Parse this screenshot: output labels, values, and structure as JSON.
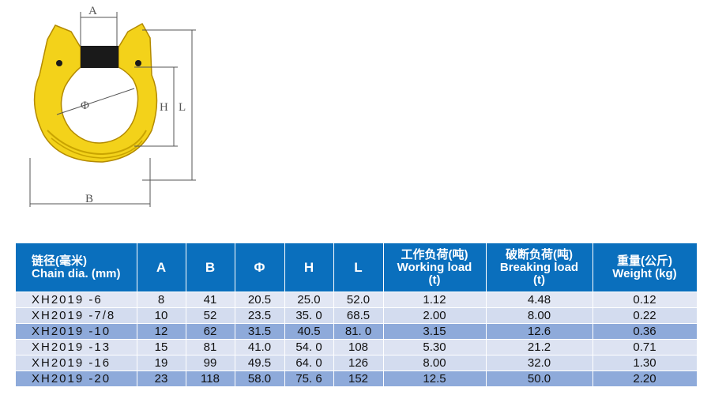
{
  "drawing": {
    "labels": {
      "a": "A",
      "b": "B",
      "phi": "Φ",
      "h": "H",
      "l": "L"
    },
    "colors": {
      "body": "#f3d21a",
      "pin": "#1a1a1a"
    }
  },
  "table": {
    "headers": [
      {
        "cn": "链径(毫米)",
        "en": "Chain dia. (mm)",
        "unit": ""
      },
      {
        "cn": "",
        "en": "A",
        "unit": ""
      },
      {
        "cn": "",
        "en": "B",
        "unit": ""
      },
      {
        "cn": "",
        "en": "Φ",
        "unit": ""
      },
      {
        "cn": "",
        "en": "H",
        "unit": ""
      },
      {
        "cn": "",
        "en": "L",
        "unit": ""
      },
      {
        "cn": "工作负荷(吨)",
        "en": "Working load",
        "unit": "(t)"
      },
      {
        "cn": "破断负荷(吨)",
        "en": "Breaking load",
        "unit": "(t)"
      },
      {
        "cn": "重量(公斤)",
        "en": "Weight (kg)",
        "unit": ""
      }
    ],
    "rows": [
      [
        "XH2019 -6",
        "8",
        "41",
        "20.5",
        "25.0",
        "52.0",
        "1.12",
        "4.48",
        "0.12"
      ],
      [
        "XH2019 -7/8",
        "10",
        "52",
        "23.5",
        "35. 0",
        "68.5",
        "2.00",
        "8.00",
        "0.22"
      ],
      [
        "XH2019 -10",
        "12",
        "62",
        "31.5",
        "40.5",
        "81. 0",
        "3.15",
        "12.6",
        "0.36"
      ],
      [
        "XH2019 -13",
        "15",
        "81",
        "41.0",
        "54. 0",
        "108",
        "5.30",
        "21.2",
        "0.71"
      ],
      [
        "XH2019 -16",
        "19",
        "99",
        "49.5",
        "64. 0",
        "126",
        "8.00",
        "32.0",
        "1.30"
      ],
      [
        "XH2019 -20",
        "23",
        "118",
        "58.0",
        "75. 6",
        "152",
        "12.5",
        "50.0",
        "2.20"
      ]
    ],
    "colors": {
      "header": "#0a6fbd",
      "row_light": "#dde3f2",
      "row_dark": "#8eaada"
    }
  }
}
